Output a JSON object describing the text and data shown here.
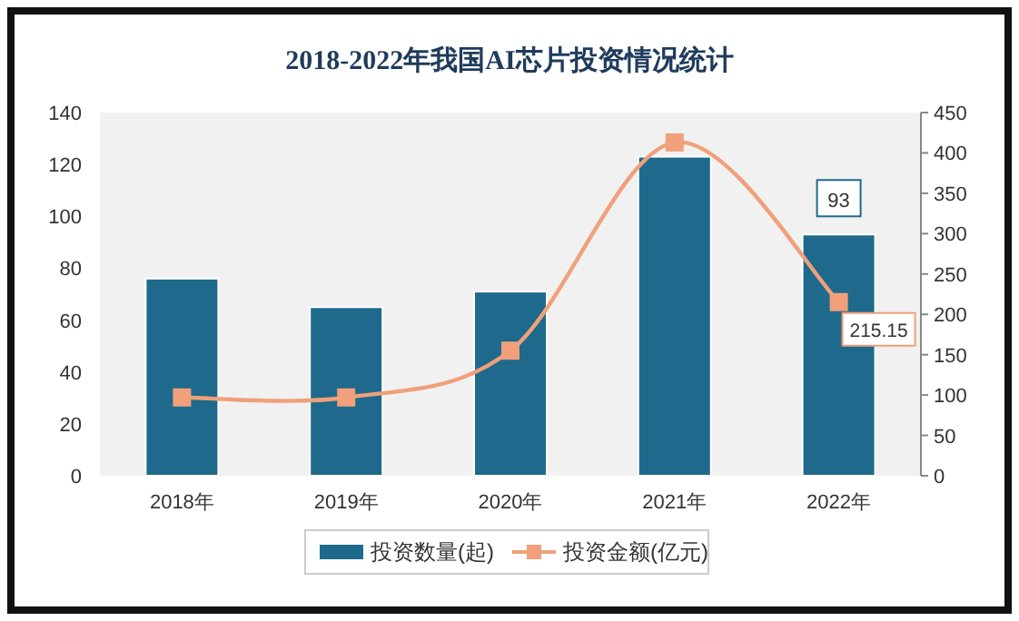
{
  "chart_data": {
    "type": "bar",
    "title": "2018-2022年我国AI芯片投资情况统计",
    "categories": [
      "2018年",
      "2019年",
      "2020年",
      "2021年",
      "2022年"
    ],
    "series": [
      {
        "name": "投资数量(起)",
        "color": "#1f6a8c",
        "values": [
          76,
          65,
          71,
          123,
          93
        ],
        "value_labels": [
          null,
          null,
          null,
          null,
          "93"
        ]
      },
      {
        "name": "投资金额(亿元)",
        "type": "line",
        "axis": "y2",
        "color": "#f0a07a",
        "values": [
          97,
          97,
          155,
          413,
          215.15
        ],
        "value_labels": [
          null,
          null,
          null,
          null,
          "215.15"
        ]
      }
    ],
    "ylim": [
      0,
      140
    ],
    "yticks": [
      0,
      20,
      40,
      60,
      80,
      100,
      120,
      140
    ],
    "y2lim": [
      0,
      450
    ],
    "y2ticks": [
      0,
      50,
      100,
      150,
      200,
      250,
      300,
      350,
      400,
      450
    ],
    "legend": "bottom",
    "marker": "square",
    "grid": false
  }
}
